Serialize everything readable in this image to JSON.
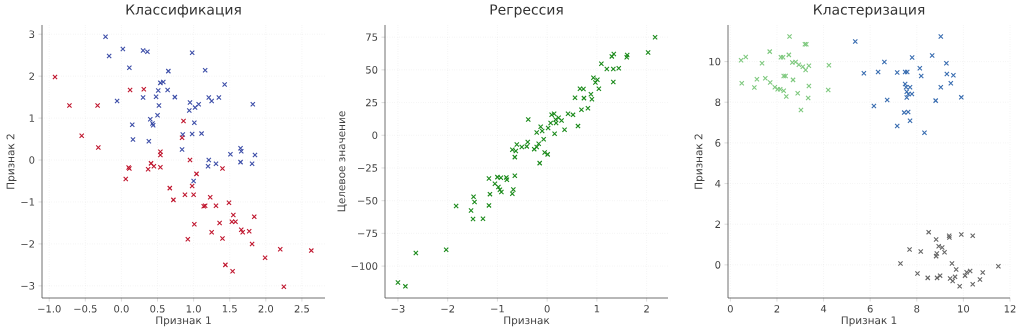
{
  "chart_data": [
    {
      "type": "scatter",
      "title": "Классификация",
      "xlabel": "Признак 1",
      "ylabel": "Признак 2",
      "marker": "cross",
      "grid": true,
      "xlim": [
        -1.1,
        2.82
      ],
      "ylim": [
        -3.29,
        3.22
      ],
      "xticks": [
        {
          "value": -1.0,
          "label": "−1.0"
        },
        {
          "value": -0.5,
          "label": "−0.5"
        },
        {
          "value": 0,
          "label": "0.0"
        },
        0.5,
        {
          "value": 1,
          "label": "1.0"
        },
        1.5,
        {
          "value": 2,
          "label": "2.0"
        },
        2.5
      ],
      "yticks": [
        {
          "value": -3,
          "label": "−3"
        },
        {
          "value": -2,
          "label": "−2"
        },
        {
          "value": -1,
          "label": "−1"
        },
        0,
        1,
        2,
        3
      ],
      "series": [
        {
          "color": "#3d4ea8",
          "x": [
            -0.22,
            -0.17,
            0.02,
            0.11,
            -0.06,
            0.3,
            0.36,
            0.65,
            0.54,
            0.58,
            0.51,
            0.64,
            0.48,
            0.3,
            0.74,
            0.52,
            0.5,
            0.4,
            0.43,
            0.44,
            0.15,
            0.16,
            0.38,
            0.98,
            1.16,
            1.43,
            0.95,
            1.07,
            1.02,
            0.94,
            1.21,
            1.25,
            1.35,
            1.82,
            1.01,
            0.98,
            0.85,
            1.11,
            0.84,
            1.65,
            1.66,
            1.51,
            1.85,
            1.21,
            1.2,
            1.31,
            1.65,
            1.81,
            1.0
          ],
          "values": [
            2.94,
            2.48,
            2.65,
            2.2,
            1.41,
            2.61,
            2.58,
            2.12,
            1.84,
            1.86,
            1.66,
            1.67,
            1.51,
            1.49,
            1.5,
            1.3,
            1.07,
            0.97,
            0.87,
            0.83,
            0.84,
            0.49,
            0.45,
            2.56,
            2.14,
            1.8,
            1.37,
            1.33,
            1.25,
            1.18,
            1.49,
            1.41,
            1.49,
            1.33,
            0.89,
            0.62,
            0.61,
            0.63,
            0.25,
            0.28,
            0.21,
            0.14,
            0.12,
            0.0,
            -0.15,
            -0.09,
            -0.05,
            -0.09,
            -0.5
          ]
        },
        {
          "color": "#c0172f",
          "x": [
            -0.92,
            -0.72,
            -0.33,
            -0.55,
            -0.32,
            0.12,
            0.31,
            0.1,
            0.11,
            0.06,
            0.37,
            0.41,
            0.45,
            0.54,
            0.54,
            0.54,
            0.86,
            0.84,
            0.95,
            1.4,
            1.04,
            0.67,
            0.98,
            0.72,
            0.88,
            1.0,
            1.23,
            1.14,
            1.16,
            1.31,
            1.49,
            1.55,
            1.01,
            1.36,
            1.53,
            1.58,
            1.25,
            1.66,
            1.68,
            1.77,
            1.84,
            0.92,
            1.4,
            1.81,
            1.44,
            1.54,
            1.99,
            2.2,
            2.63,
            2.25
          ],
          "values": [
            1.98,
            1.3,
            1.3,
            0.58,
            0.3,
            1.67,
            1.69,
            -0.18,
            -0.2,
            -0.45,
            -0.22,
            -0.08,
            -0.15,
            0.2,
            0.12,
            -0.17,
            0.93,
            0.53,
            0.0,
            -0.2,
            -0.33,
            -0.67,
            -0.62,
            -0.95,
            -0.83,
            -0.83,
            -0.89,
            -1.1,
            -1.09,
            -1.09,
            -1.02,
            -1.31,
            -1.53,
            -1.5,
            -1.47,
            -1.47,
            -1.72,
            -1.66,
            -1.72,
            -1.7,
            -1.35,
            -1.89,
            -1.87,
            -2.0,
            -2.5,
            -2.65,
            -2.33,
            -2.13,
            -2.16,
            -3.02
          ]
        }
      ]
    },
    {
      "type": "scatter",
      "title": "Регрессия",
      "xlabel": "Признак",
      "ylabel": "Целевое значение",
      "marker": "cross",
      "grid": true,
      "xlim": [
        -3.26,
        2.43
      ],
      "ylim": [
        -124.4,
        84.3
      ],
      "xticks": [
        {
          "value": -3,
          "label": "−3"
        },
        {
          "value": -2,
          "label": "−2"
        },
        {
          "value": -1,
          "label": "−1"
        },
        0,
        1,
        2
      ],
      "yticks": [
        {
          "value": -100,
          "label": "−100"
        },
        {
          "value": -75,
          "label": "−75"
        },
        {
          "value": -50,
          "label": "−50"
        },
        {
          "value": -25,
          "label": "−25"
        },
        0,
        25,
        50,
        75
      ],
      "series": [
        {
          "color": "#1a8a1a",
          "x": [
            -3.0,
            -2.85,
            -2.64,
            -2.03,
            -1.83,
            -1.53,
            -1.49,
            -1.29,
            -1.48,
            -1.46,
            -1.17,
            -1.15,
            -1.17,
            -1.0,
            -0.93,
            -1.05,
            -0.98,
            -0.95,
            -0.92,
            -0.82,
            -0.81,
            -0.65,
            -0.7,
            -0.68,
            -0.65,
            -0.63,
            -0.61,
            -0.7,
            -0.51,
            -0.39,
            -0.38,
            -0.41,
            -0.26,
            -0.21,
            -0.17,
            -0.15,
            -0.05,
            0.01,
            -0.07,
            -0.21,
            -0.13,
            -0.1,
            0.02,
            0.07,
            0.09,
            0.14,
            0.17,
            0.18,
            0.23,
            0.29,
            0.15,
            0.35,
            0.42,
            0.52,
            0.56,
            0.62,
            0.66,
            0.73,
            0.74,
            0.69,
            0.82,
            0.88,
            0.9,
            0.93,
            0.97,
            1.01,
            1.04,
            1.09,
            1.2,
            1.3,
            1.34,
            1.33,
            1.33,
            1.44,
            1.61,
            1.6,
            2.03,
            2.17
          ],
          "values": [
            -112.5,
            -115.5,
            -90,
            -87.5,
            -54,
            -57.5,
            -64,
            -63.8,
            -47,
            -51,
            -53.6,
            -45,
            -33,
            -32,
            -32.5,
            -37,
            -39.6,
            -41.6,
            -43.4,
            -32.2,
            -34,
            -31,
            -44.7,
            -41.4,
            -16.7,
            -12,
            -7,
            -11,
            -9,
            -5.2,
            12,
            -8.5,
            -10.6,
            -9,
            -6.5,
            -21.3,
            -13.1,
            -14.6,
            -3,
            2.2,
            6.5,
            3.2,
            5.5,
            9.3,
            15.7,
            16.5,
            12.1,
            9.3,
            13.4,
            11.3,
            1.1,
            4.2,
            16.4,
            15.6,
            28.7,
            7.0,
            35.6,
            35.3,
            28.4,
            19.5,
            20.7,
            31.4,
            27.6,
            43.9,
            40.4,
            42.4,
            35.6,
            54.6,
            50.6,
            60.3,
            62.2,
            40.8,
            50.6,
            51.3,
            61.3,
            59.7,
            63.3,
            75
          ]
        }
      ]
    },
    {
      "type": "scatter",
      "title": "Кластеризация",
      "xlabel": "Признак 1",
      "ylabel": "Признак 2",
      "marker": "cross",
      "grid": true,
      "xlim": [
        -0.1,
        12
      ],
      "ylim": [
        -1.63,
        11.8
      ],
      "xticks": [
        0,
        2,
        4,
        6,
        8,
        10,
        12
      ],
      "yticks": [
        0,
        2,
        4,
        6,
        8,
        10
      ],
      "series": [
        {
          "color": "#7fc97f",
          "x": [
            0.46,
            0.66,
            0.49,
            1.03,
            1.14,
            1.36,
            1.5,
            1.69,
            1.71,
            1.91,
            2.03,
            2.14,
            2.17,
            2.26,
            2.29,
            2.37,
            2.29,
            2.4,
            2.54,
            2.51,
            2.66,
            2.69,
            2.8,
            2.89,
            2.94,
            3.03,
            3.11,
            3.2,
            3.26,
            3.23,
            3.37,
            3.37,
            3.34,
            4.23,
            4.2
          ],
          "values": [
            10.07,
            10.23,
            8.93,
            8.72,
            9.13,
            9.92,
            9.18,
            10.49,
            8.97,
            8.74,
            8.64,
            8.64,
            10.21,
            10.21,
            9.29,
            9.29,
            8.57,
            8.28,
            11.23,
            10.33,
            9.95,
            9.1,
            9.98,
            8.44,
            9.84,
            7.62,
            9.75,
            10.85,
            10.85,
            9.59,
            9.79,
            8.8,
            8.21,
            9.82,
            8.6
          ]
        },
        {
          "color": "#386cb0",
          "x": [
            5.36,
            5.73,
            6.34,
            6.61,
            6.16,
            6.73,
            7.16,
            7.16,
            7.5,
            7.59,
            7.5,
            7.54,
            7.57,
            7.64,
            7.57,
            7.71,
            7.79,
            7.46,
            7.63,
            7.71,
            7.8,
            8.13,
            8.19,
            8.33,
            8.66,
            8.81,
            9.03,
            9.03,
            9.27,
            9.29,
            9.46,
            9.57,
            9.91
          ],
          "values": [
            10.99,
            9.43,
            9.49,
            9.98,
            7.82,
            8.11,
            6.83,
            9.46,
            9.49,
            9.49,
            8.9,
            8.74,
            8.52,
            8.41,
            8.23,
            8.74,
            8.41,
            7.49,
            7.52,
            7.09,
            10.2,
            9.67,
            9.29,
            6.5,
            10.3,
            8.08,
            8.74,
            11.23,
            9.92,
            9.39,
            8.93,
            9.33,
            8.24
          ]
        },
        {
          "color": "#666666",
          "x": [
            7.3,
            7.69,
            8.17,
            8.03,
            8.51,
            8.47,
            8.83,
            8.83,
            8.86,
            8.94,
            9.09,
            9.19,
            8.87,
            9.0,
            9.39,
            9.4,
            9.91,
            10.4,
            9.51,
            9.69,
            9.43,
            9.54,
            9.64,
            9.84,
            10.07,
            10.14,
            10.29,
            10.4,
            10.71,
            10.83,
            11.5
          ],
          "values": [
            0.07,
            0.76,
            0.66,
            -0.43,
            1.61,
            -0.64,
            1.25,
            0.43,
            0.56,
            0.92,
            0.85,
            0.62,
            -0.64,
            -0.53,
            1.43,
            1.35,
            1.49,
            1.43,
            0.07,
            -0.23,
            -0.67,
            -0.79,
            -0.59,
            -1.05,
            -0.53,
            -0.36,
            -0.3,
            -0.95,
            -0.72,
            -0.38,
            -0.07
          ]
        }
      ]
    }
  ]
}
